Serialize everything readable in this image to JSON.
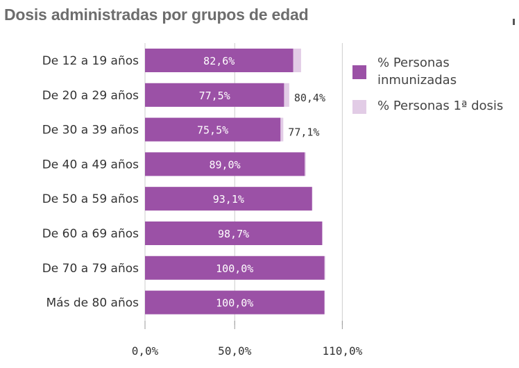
{
  "title": "Dosis administradas por grupos de edad",
  "colors": {
    "immunized": "#9b51a6",
    "first_dose": "#e2cce6",
    "axis": "#cccccc",
    "title": "#6d6d6d"
  },
  "legend": {
    "immunized_label": "% Personas inmunizadas",
    "first_dose_label": "% Personas 1ª dosis"
  },
  "chart_data": {
    "type": "bar",
    "orientation": "horizontal",
    "stacked": "overlay",
    "title": "Dosis administradas por grupos de edad",
    "categories": [
      "De 12 a 19 años",
      "De 20 a 29 años",
      "De 30 a 39 años",
      "De 40 a 49 años",
      "De 50 a 59 años",
      "De 60 a 69 años",
      "De 70 a 79 años",
      "Más de 80 años"
    ],
    "series": [
      {
        "name": "% Personas inmunizadas",
        "values": [
          82.6,
          77.5,
          75.5,
          89.0,
          93.1,
          98.7,
          100.0,
          100.0
        ],
        "labels": [
          "82,6%",
          "77,5%",
          "75,5%",
          "89,0%",
          "93,1%",
          "98,7%",
          "100,0%",
          "100,0%"
        ]
      },
      {
        "name": "% Personas 1ª dosis",
        "values": [
          87.0,
          80.4,
          77.1,
          89.7,
          93.3,
          99.1,
          100.5,
          100.3
        ],
        "labels": [
          "",
          "80,4%",
          "77,1%",
          "",
          "",
          "",
          "",
          ""
        ]
      }
    ],
    "xlim": [
      0,
      110
    ],
    "xticks": [
      0,
      50,
      110
    ],
    "xtick_labels": [
      "0,0%",
      "50,0%",
      "110,0%"
    ],
    "legend_position": "right"
  }
}
